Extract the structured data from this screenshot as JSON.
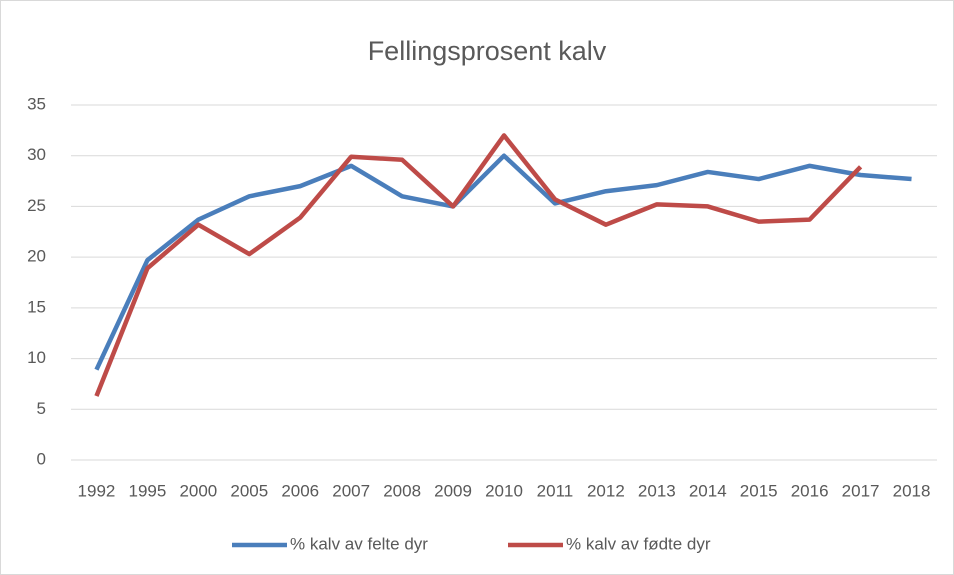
{
  "chart_data": {
    "type": "line",
    "title": "Fellingsprosent kalv",
    "categories": [
      "1992",
      "1995",
      "2000",
      "2005",
      "2006",
      "2007",
      "2008",
      "2009",
      "2010",
      "2011",
      "2012",
      "2013",
      "2014",
      "2015",
      "2016",
      "2017",
      "2018"
    ],
    "series": [
      {
        "name": "% kalv av felte dyr",
        "color": "#4a7ebb",
        "values": [
          8.9,
          19.7,
          23.7,
          26,
          27,
          29,
          26,
          25,
          30,
          25.3,
          26.5,
          27.1,
          28.4,
          27.7,
          29,
          28.1,
          27.7
        ]
      },
      {
        "name": "% kalv av fødte dyr",
        "color": "#be4b48",
        "values": [
          6.3,
          18.9,
          23.2,
          20.3,
          23.9,
          29.9,
          29.6,
          25,
          32,
          25.7,
          23.2,
          25.2,
          25,
          23.5,
          23.7,
          28.9,
          null
        ]
      }
    ],
    "ylim": [
      0,
      35
    ],
    "yticks": [
      0,
      5,
      10,
      15,
      20,
      25,
      30,
      35
    ],
    "grid": true,
    "legend": "bottom"
  }
}
